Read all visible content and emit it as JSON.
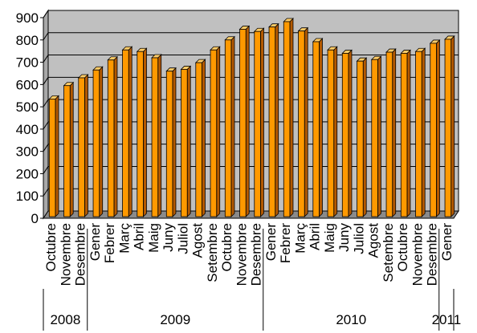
{
  "chart_data": {
    "type": "bar",
    "title": "",
    "xlabel": "",
    "ylabel": "",
    "ylim": [
      0,
      900
    ],
    "yticks": [
      0,
      100,
      200,
      300,
      400,
      500,
      600,
      700,
      800,
      900
    ],
    "grid": true,
    "legend": "none",
    "colors": {
      "plot_background": "#c0c0c0",
      "bar_front": "#ff9900",
      "bar_side": "#b35900",
      "bar_top": "#ffcc66",
      "floor": "#8a8a8a",
      "gridline": "#000000"
    },
    "categories": [
      "Octubre",
      "Novembre",
      "Desembre",
      "Gener",
      "Febrer",
      "Març",
      "Abril",
      "Maig",
      "Juny",
      "Juliol",
      "Agost",
      "Setembre",
      "Octubre",
      "Novembre",
      "Desembre",
      "Gener",
      "Febrer",
      "Març",
      "Abril",
      "Maig",
      "Juny",
      "Juliol",
      "Agost",
      "Setembre",
      "Octubre",
      "Novembre",
      "Desembre",
      "Gener"
    ],
    "values": [
      535,
      595,
      630,
      665,
      710,
      755,
      748,
      720,
      660,
      668,
      698,
      755,
      800,
      848,
      838,
      858,
      882,
      840,
      792,
      755,
      740,
      705,
      712,
      745,
      740,
      748,
      785,
      803
    ],
    "years": [
      {
        "label": "2008",
        "start": 0,
        "end": 3
      },
      {
        "label": "2009",
        "start": 3,
        "end": 15
      },
      {
        "label": "2010",
        "start": 15,
        "end": 27
      },
      {
        "label": "2011",
        "start": 27,
        "end": 28
      }
    ]
  }
}
